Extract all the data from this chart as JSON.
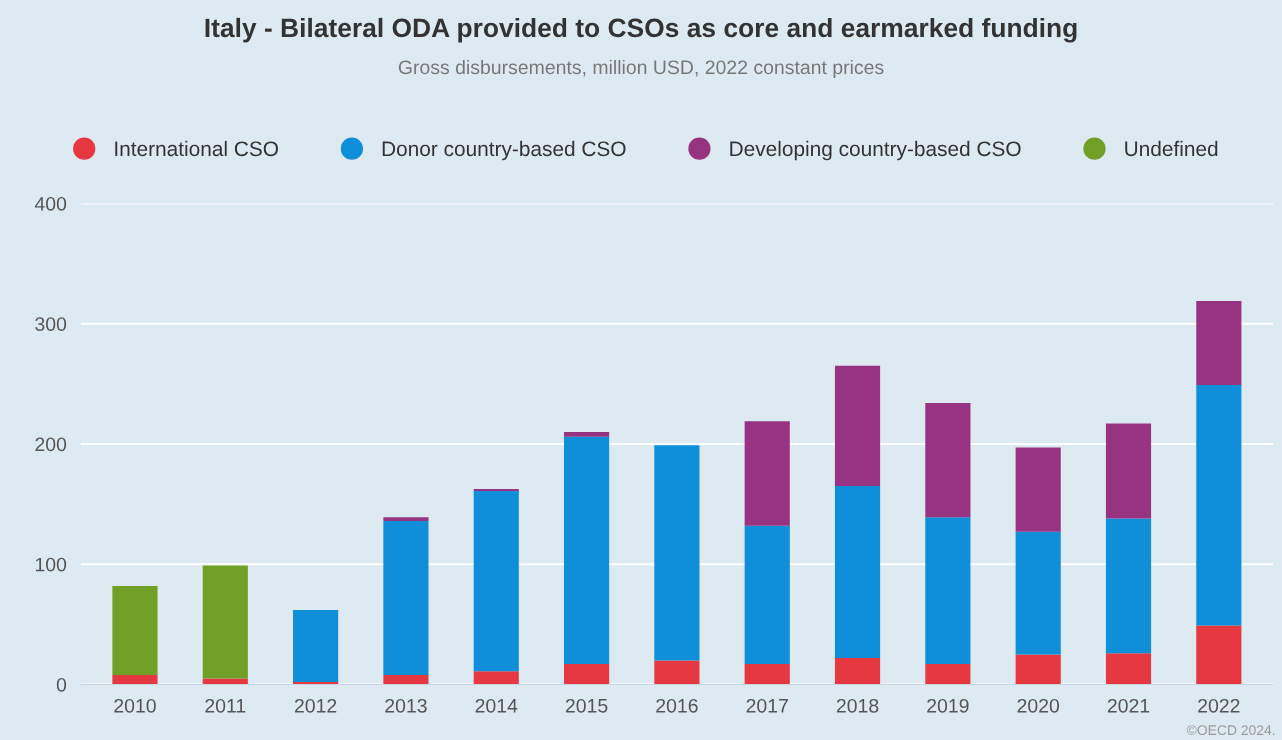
{
  "chart_data": {
    "type": "bar",
    "title": "Italy - Bilateral ODA provided to CSOs as core and earmarked funding",
    "subtitle": "Gross disbursements, million USD, 2022 constant prices",
    "categories": [
      "2010",
      "2011",
      "2012",
      "2013",
      "2014",
      "2015",
      "2016",
      "2017",
      "2018",
      "2019",
      "2020",
      "2021",
      "2022"
    ],
    "series": [
      {
        "name": "International CSO",
        "color": "#e63841",
        "values": [
          8,
          5,
          2,
          8,
          11,
          17,
          20,
          17,
          22,
          17,
          25,
          26,
          49
        ]
      },
      {
        "name": "Donor country-based CSO",
        "color": "#0f8fda",
        "values": [
          null,
          null,
          60,
          128,
          150,
          189,
          179,
          115,
          143,
          122,
          102,
          112,
          200
        ]
      },
      {
        "name": "Developing country-based CSO",
        "color": "#973380",
        "values": [
          null,
          null,
          null,
          3,
          1.5,
          4,
          null,
          87,
          100,
          95,
          70,
          79,
          70
        ]
      },
      {
        "name": "Undefined",
        "color": "#71a027",
        "values": [
          74,
          94,
          null,
          null,
          null,
          null,
          null,
          null,
          null,
          null,
          null,
          null,
          null
        ]
      }
    ],
    "stacked": true,
    "ylim": [
      0,
      400
    ],
    "yticks": [
      0,
      100,
      200,
      300,
      400
    ],
    "grid": "y",
    "legend": "top",
    "marker": "circle",
    "annotations": [
      "©OECD 2024."
    ]
  }
}
